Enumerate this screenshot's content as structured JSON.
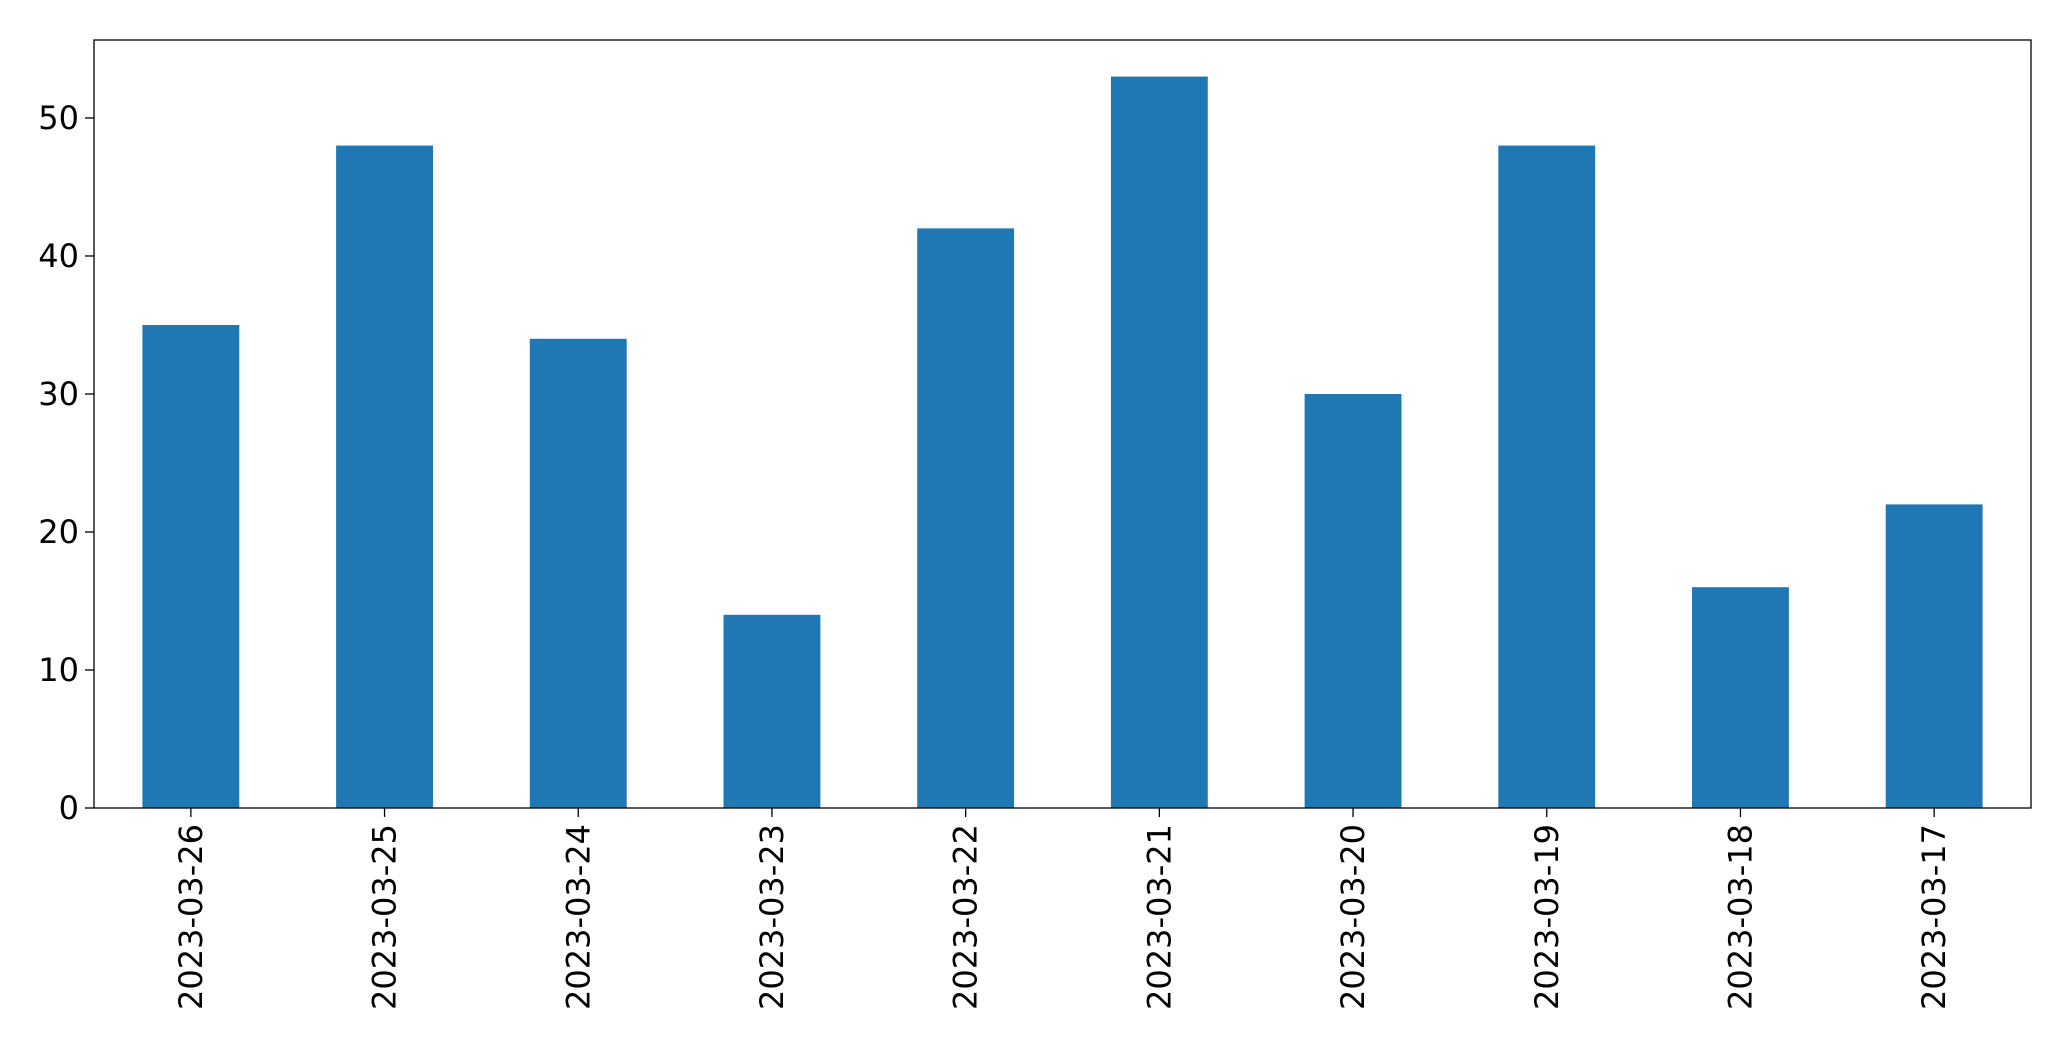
{
  "chart_data": {
    "type": "bar",
    "categories": [
      "2023-03-26",
      "2023-03-25",
      "2023-03-24",
      "2023-03-23",
      "2023-03-22",
      "2023-03-21",
      "2023-03-20",
      "2023-03-19",
      "2023-03-18",
      "2023-03-17"
    ],
    "values": [
      35,
      48,
      34,
      14,
      42,
      53,
      30,
      48,
      16,
      22
    ],
    "color": "#1f77b4",
    "ylim": [
      0,
      55.65
    ],
    "yticks": [
      0,
      10,
      20,
      30,
      40,
      50
    ],
    "grid": false
  }
}
